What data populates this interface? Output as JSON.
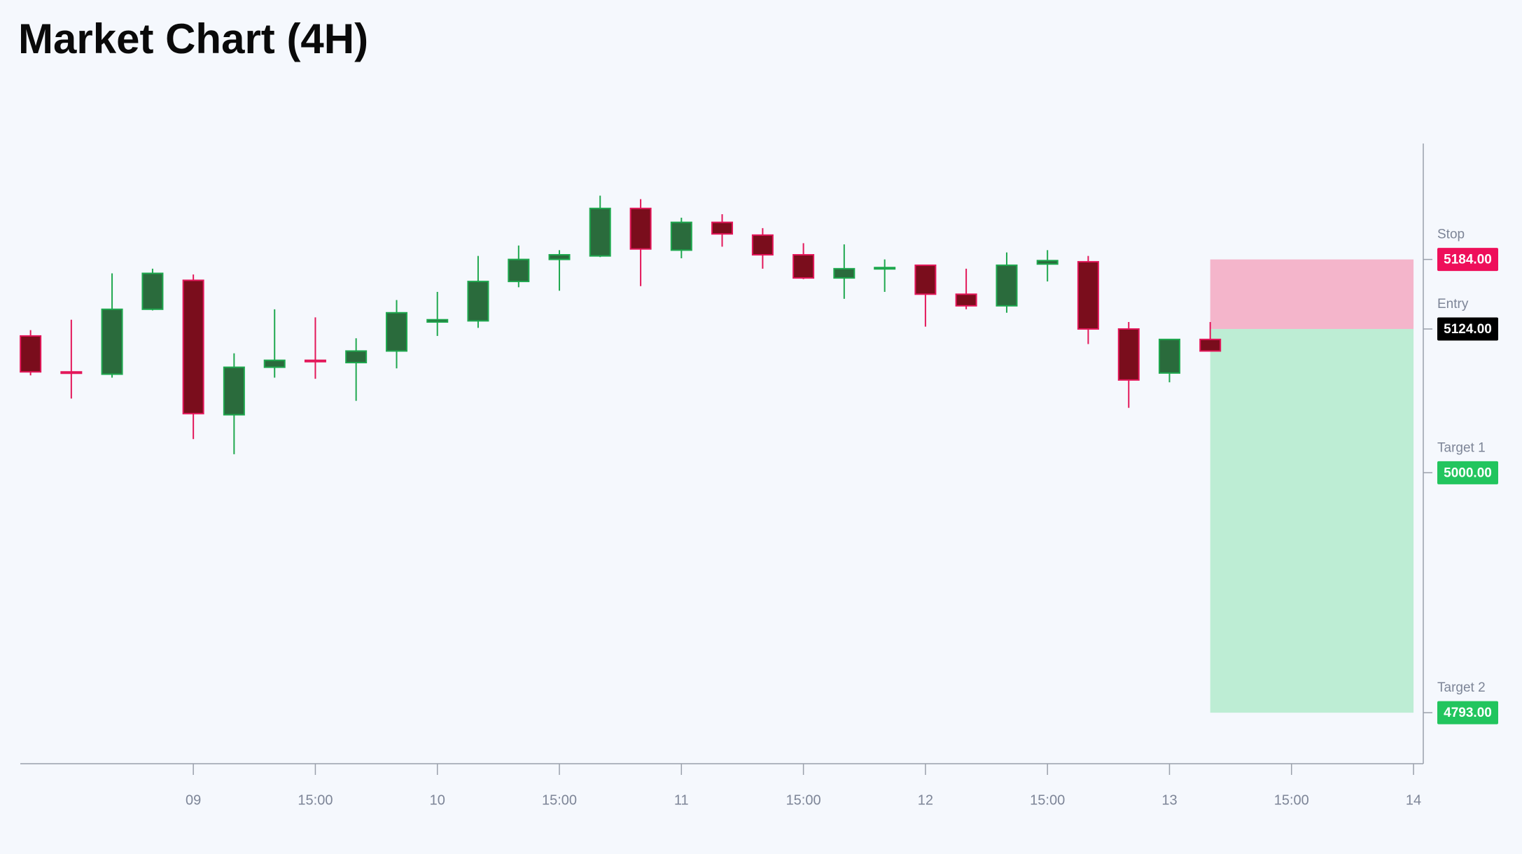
{
  "chart_data": {
    "type": "candlestick",
    "title": "Market Chart (4H)",
    "x": [
      8.333,
      8.5,
      8.667,
      8.833,
      9,
      9.167,
      9.333,
      9.5,
      9.667,
      9.833,
      10,
      10.167,
      10.333,
      10.5,
      10.667,
      10.833,
      11,
      11.167,
      11.333,
      11.5,
      11.667,
      11.833,
      12,
      12.167,
      12.333,
      12.5,
      12.667,
      12.833,
      13,
      13.167
    ],
    "open": [
      5118,
      5087,
      5085,
      5141,
      5166,
      5050,
      5091,
      5097,
      5095,
      5105,
      5130,
      5131,
      5165,
      5184,
      5187,
      5228,
      5192,
      5216,
      5205,
      5188,
      5168,
      5176,
      5179,
      5154,
      5144,
      5180,
      5182,
      5124,
      5086,
      5115
    ],
    "high": [
      5123,
      5132,
      5172,
      5176,
      5171,
      5103,
      5141,
      5134,
      5116,
      5149,
      5156,
      5187,
      5196,
      5192,
      5239,
      5236,
      5220,
      5223,
      5211,
      5198,
      5197,
      5184,
      5179,
      5176,
      5190,
      5192,
      5187,
      5130,
      5115,
      5130
    ],
    "low": [
      5084,
      5064,
      5082,
      5140,
      5029,
      5016,
      5082,
      5081,
      5062,
      5090,
      5118,
      5125,
      5160,
      5157,
      5186,
      5161,
      5185,
      5195,
      5176,
      5167,
      5150,
      5156,
      5126,
      5141,
      5138,
      5165,
      5111,
      5056,
      5078,
      5105
    ],
    "close": [
      5087,
      5086,
      5141,
      5172,
      5051,
      5091,
      5097,
      5096,
      5105,
      5138,
      5132,
      5165,
      5184,
      5188,
      5228,
      5193,
      5216,
      5206,
      5188,
      5168,
      5176,
      5177,
      5154,
      5144,
      5179,
      5183,
      5124,
      5080,
      5115,
      5105
    ],
    "up_color": "#1fa84f",
    "up_fill": "#2a6b3c",
    "down_color": "#e3175a",
    "down_fill": "#7a0d1c",
    "xlim": [
      8.291,
      14.04
    ],
    "ylim": [
      4749,
      5284
    ],
    "xticks": [
      {
        "value": 9,
        "label": "09"
      },
      {
        "value": 9.5,
        "label": "15:00"
      },
      10,
      {
        "value": 10.5,
        "label": "15:00"
      },
      11,
      {
        "value": 11.5,
        "label": "15:00"
      },
      12,
      {
        "value": 12.5,
        "label": "15:00"
      },
      13,
      {
        "value": 13.5,
        "label": "15:00"
      },
      14
    ],
    "position": {
      "start": 13.167,
      "end": 14,
      "stop_color": "#f4b5cb",
      "target_color": "#bdedd4"
    },
    "levels": [
      {
        "name": "Stop",
        "value": 5184,
        "label": "5184.00",
        "color": "#ee0f5a"
      },
      {
        "name": "Entry",
        "value": 5124,
        "label": "5124.00",
        "color": "#000000"
      },
      {
        "name": "Target 1",
        "value": 5000,
        "label": "5000.00",
        "color": "#22c55e"
      },
      {
        "name": "Target 2",
        "value": 4793,
        "label": "4793.00",
        "color": "#22c55e"
      }
    ]
  }
}
